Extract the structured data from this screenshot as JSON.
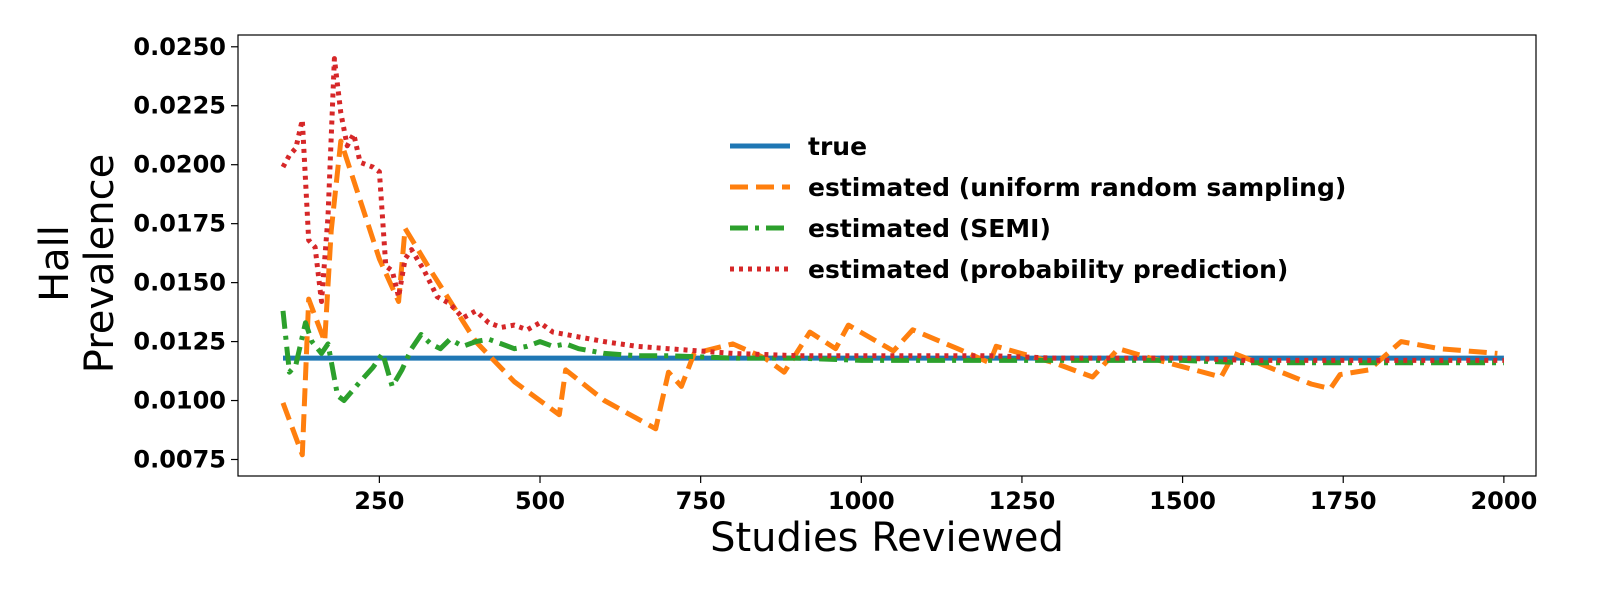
{
  "chart_data": {
    "type": "line",
    "xlabel": "Studies Reviewed",
    "ylabel_lines": [
      "Hall",
      "Prevalence"
    ],
    "xlim": [
      30,
      2050
    ],
    "ylim": [
      0.0068,
      0.0255
    ],
    "xticks": [
      250,
      500,
      750,
      1000,
      1250,
      1500,
      1750,
      2000
    ],
    "xtick_labels": [
      "250",
      "500",
      "750",
      "1000",
      "1250",
      "1500",
      "1750",
      "2000"
    ],
    "yticks": [
      0.0075,
      0.01,
      0.0125,
      0.015,
      0.0175,
      0.02,
      0.0225,
      0.025
    ],
    "ytick_labels": [
      "0.0075",
      "0.0100",
      "0.0125",
      "0.0150",
      "0.0175",
      "0.0200",
      "0.0225",
      "0.0250"
    ],
    "grid": false,
    "legend_position": "upper-center",
    "series": [
      {
        "name": "true",
        "color": "#1f77b4",
        "style": "solid",
        "x": [
          100,
          2000
        ],
        "y": [
          0.0118,
          0.0118
        ]
      },
      {
        "name": "estimated (uniform random sampling)",
        "color": "#ff7f0e",
        "style": "dashed",
        "x": [
          100,
          130,
          140,
          165,
          175,
          190,
          250,
          280,
          290,
          330,
          400,
          460,
          530,
          540,
          600,
          680,
          700,
          720,
          740,
          800,
          850,
          880,
          920,
          960,
          980,
          1050,
          1080,
          1150,
          1200,
          1210,
          1300,
          1360,
          1380,
          1400,
          1450,
          1560,
          1580,
          1700,
          1730,
          1745,
          1790,
          1840,
          1900,
          1990
        ],
        "y": [
          0.0099,
          0.0077,
          0.0143,
          0.0125,
          0.0172,
          0.021,
          0.016,
          0.0142,
          0.0173,
          0.0155,
          0.0125,
          0.0108,
          0.0094,
          0.0113,
          0.01,
          0.0088,
          0.0112,
          0.0106,
          0.012,
          0.0124,
          0.0118,
          0.0112,
          0.0129,
          0.0122,
          0.0132,
          0.0121,
          0.013,
          0.0122,
          0.0116,
          0.0123,
          0.0116,
          0.011,
          0.0116,
          0.0122,
          0.0118,
          0.011,
          0.012,
          0.0107,
          0.0105,
          0.0111,
          0.0113,
          0.0125,
          0.0122,
          0.012
        ]
      },
      {
        "name": "estimated (SEMI)",
        "color": "#2ca02c",
        "style": "dashdot",
        "x": [
          100,
          110,
          120,
          135,
          145,
          160,
          170,
          185,
          195,
          220,
          240,
          255,
          270,
          285,
          300,
          315,
          330,
          345,
          360,
          380,
          400,
          420,
          440,
          460,
          480,
          500,
          520,
          540,
          560,
          580,
          600,
          650,
          700,
          800,
          900,
          1000,
          1100,
          1200,
          1300,
          1400,
          1500,
          1600,
          1700,
          1800,
          1900,
          2000
        ],
        "y": [
          0.0138,
          0.0112,
          0.0115,
          0.0133,
          0.0125,
          0.012,
          0.0124,
          0.0102,
          0.01,
          0.0108,
          0.0114,
          0.012,
          0.0106,
          0.0113,
          0.0122,
          0.0128,
          0.0124,
          0.0122,
          0.0126,
          0.0123,
          0.0125,
          0.0126,
          0.0124,
          0.0122,
          0.0123,
          0.0125,
          0.0123,
          0.0124,
          0.0122,
          0.0121,
          0.012,
          0.0119,
          0.0119,
          0.0118,
          0.0118,
          0.0117,
          0.0117,
          0.0117,
          0.0117,
          0.0117,
          0.0117,
          0.0116,
          0.0116,
          0.0116,
          0.0116,
          0.0116
        ]
      },
      {
        "name": "estimated (probability prediction)",
        "color": "#d62728",
        "style": "dotted",
        "x": [
          100,
          110,
          120,
          130,
          140,
          150,
          160,
          170,
          180,
          190,
          200,
          210,
          220,
          230,
          240,
          250,
          260,
          270,
          280,
          290,
          300,
          320,
          340,
          360,
          380,
          400,
          420,
          440,
          460,
          480,
          500,
          520,
          560,
          600,
          650,
          700,
          800,
          900,
          1000,
          1100,
          1200,
          1300,
          1400,
          1500,
          1600,
          1700,
          1800,
          1900,
          2000
        ],
        "y": [
          0.0199,
          0.0204,
          0.0207,
          0.0219,
          0.0168,
          0.0165,
          0.0142,
          0.0178,
          0.0245,
          0.0222,
          0.0208,
          0.0213,
          0.0201,
          0.02,
          0.0199,
          0.0197,
          0.0157,
          0.0155,
          0.0144,
          0.016,
          0.0164,
          0.0155,
          0.0144,
          0.0141,
          0.0135,
          0.0138,
          0.0133,
          0.0131,
          0.0132,
          0.013,
          0.0133,
          0.0129,
          0.0127,
          0.0125,
          0.0123,
          0.0122,
          0.012,
          0.0119,
          0.0119,
          0.0119,
          0.0119,
          0.0118,
          0.0118,
          0.0118,
          0.0117,
          0.0117,
          0.0117,
          0.0117,
          0.0117
        ]
      }
    ]
  }
}
